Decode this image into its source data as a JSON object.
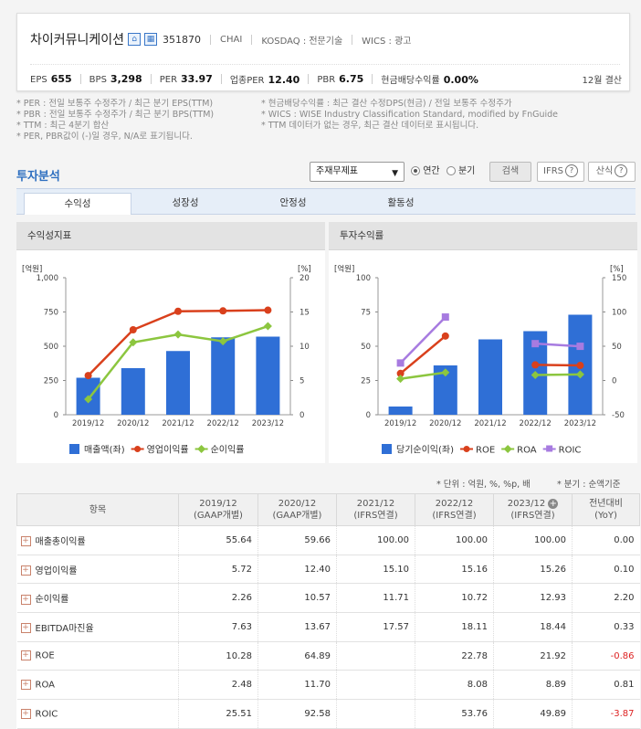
{
  "company": {
    "name": "차이커뮤니케이션",
    "code": "351870",
    "ticker": "CHAI",
    "market": "KOSDAQ : 전문기술",
    "wics": "WICS : 광고",
    "fiscal": "12월 결산"
  },
  "indicators": [
    {
      "label": "EPS",
      "value": "655"
    },
    {
      "label": "BPS",
      "value": "3,298"
    },
    {
      "label": "PER",
      "value": "33.97"
    },
    {
      "label": "업종PER",
      "value": "12.40"
    },
    {
      "label": "PBR",
      "value": "6.75"
    },
    {
      "label": "현금배당수익률",
      "value": "0.00%"
    }
  ],
  "notes": {
    "left": [
      "* PER : 전일 보통주 수정주가 / 최근 분기 EPS(TTM)",
      "* PBR : 전일 보통주 수정주가 / 최근 분기 BPS(TTM)",
      "* TTM : 최근 4분기 합산",
      "* PER, PBR값이 (-)일 경우, N/A로 표기됩니다."
    ],
    "right": [
      "* 현금배당수익률 : 최근 결산 수정DPS(현금) / 전일 보통주 수정주가",
      "* WICS : WISE Industry Classification Standard, modified by FnGuide",
      "* TTM 데이터가 없는 경우, 최근 결산 데이터로 표시됩니다."
    ]
  },
  "section": {
    "title": "투자분석",
    "select_value": "주재무제표",
    "radio_annual": "연간",
    "radio_quarter": "분기",
    "search_btn": "검색",
    "ifrs_btn": "IFRS",
    "formula_btn": "산식"
  },
  "tabs": [
    "수익성",
    "성장성",
    "안정성",
    "활동성"
  ],
  "chart_titles": {
    "left": "수익성지표",
    "right": "투자수익률"
  },
  "chart_data": [
    {
      "type": "bar",
      "title": "수익성지표",
      "categories": [
        "2019/12",
        "2020/12",
        "2021/12",
        "2022/12",
        "2023/12"
      ],
      "y_left_unit": "[억원]",
      "y_right_unit": "[%]",
      "y_left_ticks": [
        "0",
        "250",
        "500",
        "750",
        "1,000"
      ],
      "y_right_ticks": [
        "0",
        "5",
        "10",
        "15",
        "20"
      ],
      "ylim": [
        0,
        1000
      ],
      "y2lim": [
        0,
        20
      ],
      "series": [
        {
          "name": "매출액(좌)",
          "kind": "bar",
          "color": "#2f6fd6",
          "values": [
            270,
            340,
            465,
            565,
            570
          ]
        },
        {
          "name": "영업이익률",
          "kind": "line",
          "color": "#d9401c",
          "axis": "right",
          "values": [
            5.72,
            12.4,
            15.1,
            15.16,
            15.26
          ]
        },
        {
          "name": "순이익률",
          "kind": "line",
          "color": "#8cc63f",
          "axis": "right",
          "values": [
            2.26,
            10.57,
            11.71,
            10.72,
            12.93
          ]
        }
      ]
    },
    {
      "type": "bar",
      "title": "투자수익률",
      "categories": [
        "2019/12",
        "2020/12",
        "2021/12",
        "2022/12",
        "2023/12"
      ],
      "y_left_unit": "[억원]",
      "y_right_unit": "[%]",
      "y_left_ticks": [
        "0",
        "25",
        "50",
        "75",
        "100"
      ],
      "y_right_ticks": [
        "-50",
        "0",
        "50",
        "100",
        "150"
      ],
      "ylim": [
        0,
        100
      ],
      "y2lim": [
        -50,
        150
      ],
      "series": [
        {
          "name": "당기순이익(좌)",
          "kind": "bar",
          "color": "#2f6fd6",
          "values": [
            6,
            36,
            55,
            61,
            73
          ]
        },
        {
          "name": "ROE",
          "kind": "line",
          "color": "#d9401c",
          "axis": "right",
          "values": [
            10.28,
            64.89,
            null,
            22.78,
            21.92
          ]
        },
        {
          "name": "ROA",
          "kind": "line",
          "color": "#8cc63f",
          "axis": "right",
          "values": [
            2.48,
            11.7,
            null,
            8.08,
            8.89
          ]
        },
        {
          "name": "ROIC",
          "kind": "line",
          "color": "#a77be0",
          "axis": "right",
          "values": [
            25.51,
            92.58,
            null,
            53.76,
            49.89
          ]
        }
      ]
    }
  ],
  "units_left": "* 단위 : 억원, %, %p, 배",
  "units_right": "* 분기 : 순액기준",
  "table": {
    "headers": [
      {
        "l1": "항목",
        "l2": ""
      },
      {
        "l1": "2019/12",
        "l2": "(GAAP개별)"
      },
      {
        "l1": "2020/12",
        "l2": "(GAAP개별)"
      },
      {
        "l1": "2021/12",
        "l2": "(IFRS연결)"
      },
      {
        "l1": "2022/12",
        "l2": "(IFRS연결)"
      },
      {
        "l1": "2023/12",
        "l2": "(IFRS연결)"
      },
      {
        "l1": "전년대비",
        "l2": "(YoY)"
      }
    ],
    "rows": [
      {
        "label": "매출총이익률",
        "values": [
          "55.64",
          "59.66",
          "100.00",
          "100.00",
          "100.00",
          "0.00"
        ]
      },
      {
        "label": "영업이익률",
        "values": [
          "5.72",
          "12.40",
          "15.10",
          "15.16",
          "15.26",
          "0.10"
        ]
      },
      {
        "label": "순이익률",
        "values": [
          "2.26",
          "10.57",
          "11.71",
          "10.72",
          "12.93",
          "2.20"
        ]
      },
      {
        "label": "EBITDA마진율",
        "values": [
          "7.63",
          "13.67",
          "17.57",
          "18.11",
          "18.44",
          "0.33"
        ]
      },
      {
        "label": "ROE",
        "values": [
          "10.28",
          "64.89",
          "",
          "22.78",
          "21.92",
          "-0.86"
        ]
      },
      {
        "label": "ROA",
        "values": [
          "2.48",
          "11.70",
          "",
          "8.08",
          "8.89",
          "0.81"
        ]
      },
      {
        "label": "ROIC",
        "values": [
          "25.51",
          "92.58",
          "",
          "53.76",
          "49.89",
          "-3.87"
        ]
      }
    ]
  }
}
